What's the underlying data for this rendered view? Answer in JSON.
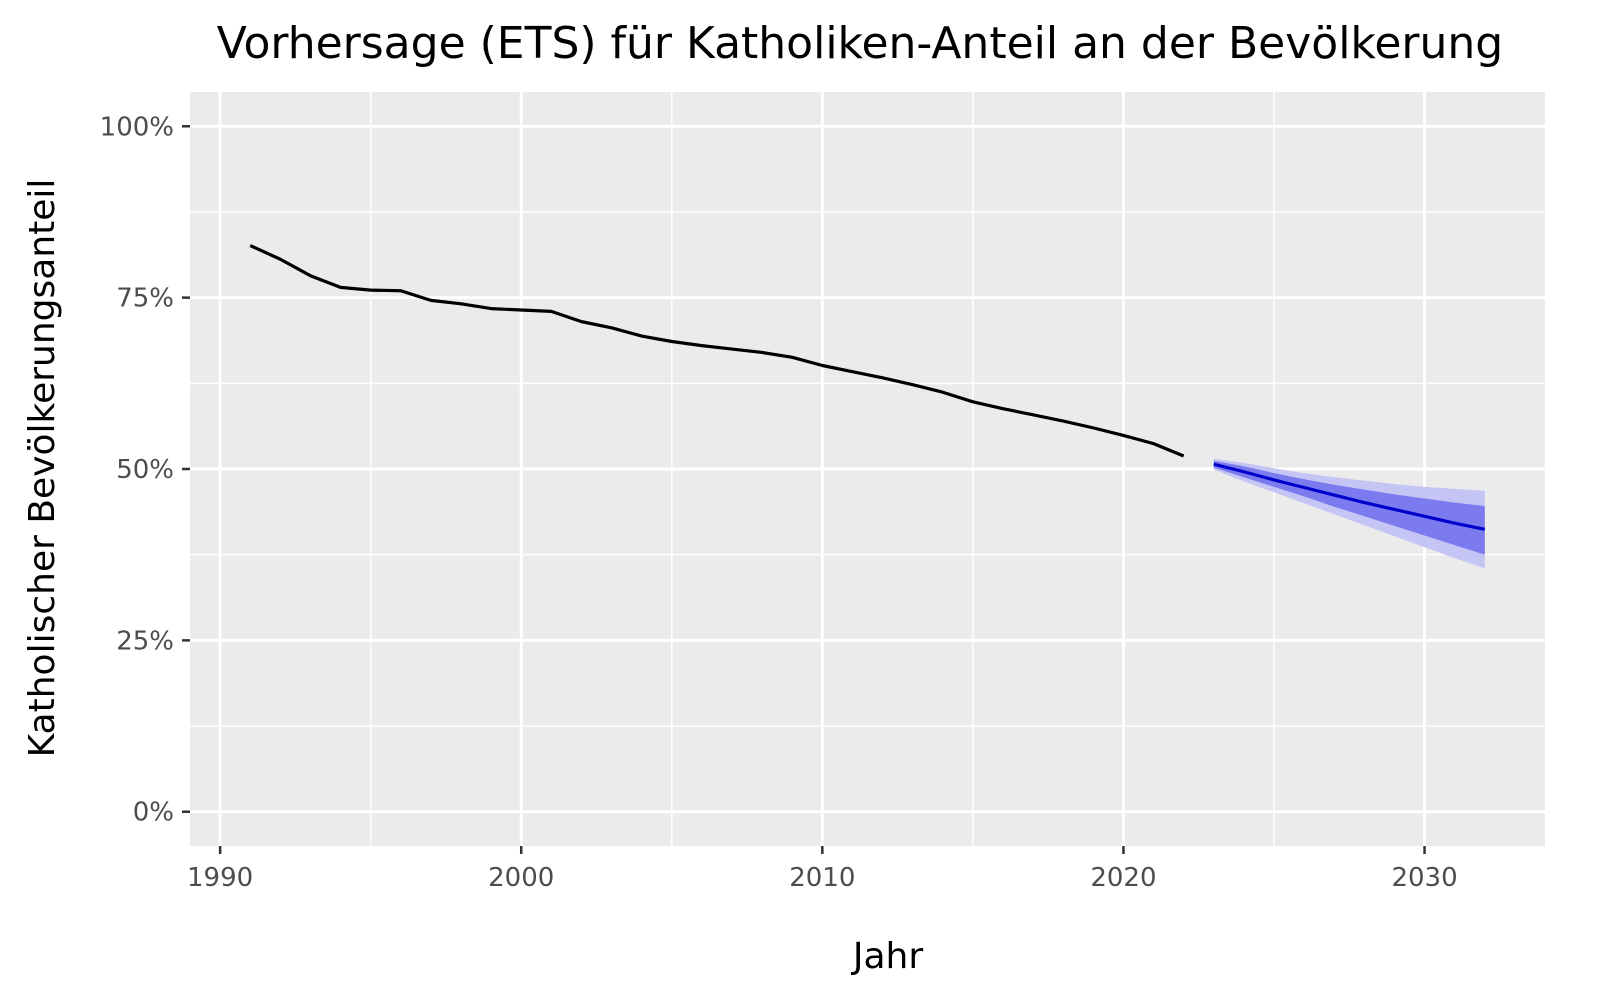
{
  "chart_data": {
    "type": "line",
    "title": "Vorhersage (ETS) für Katholiken-Anteil an der Bevölkerung",
    "xlabel": "Jahr",
    "ylabel": "Katholischer Bevölkerungsanteil",
    "xlim": [
      1989,
      2034
    ],
    "ylim": [
      -0.05,
      1.05
    ],
    "x_ticks": [
      1990,
      2000,
      2010,
      2020,
      2030
    ],
    "x_tick_labels": [
      "1990",
      "2000",
      "2010",
      "2020",
      "2030"
    ],
    "y_ticks": [
      0,
      0.25,
      0.5,
      0.75,
      1.0
    ],
    "y_tick_labels": [
      "0%",
      "25%",
      "50%",
      "75%",
      "100%"
    ],
    "grid": true,
    "legend": "none",
    "colors": {
      "panel": "#ebebeb",
      "history": "#000000",
      "forecast": "#0000cc",
      "band80": "#7b7bef",
      "band95": "#c4c4f5"
    },
    "series": [
      {
        "role": "history",
        "x": [
          1991,
          1992,
          1993,
          1994,
          1995,
          1996,
          1997,
          1998,
          1999,
          2000,
          2001,
          2002,
          2003,
          2004,
          2005,
          2006,
          2007,
          2008,
          2009,
          2010,
          2011,
          2012,
          2013,
          2014,
          2015,
          2016,
          2017,
          2018,
          2019,
          2020,
          2021,
          2022
        ],
        "y": [
          0.826,
          0.806,
          0.782,
          0.765,
          0.761,
          0.76,
          0.746,
          0.741,
          0.734,
          0.732,
          0.73,
          0.715,
          0.706,
          0.694,
          0.686,
          0.68,
          0.675,
          0.67,
          0.663,
          0.651,
          0.642,
          0.633,
          0.623,
          0.612,
          0.598,
          0.588,
          0.579,
          0.57,
          0.56,
          0.549,
          0.537,
          0.519
        ]
      },
      {
        "role": "forecast",
        "x": [
          2023,
          2024,
          2025,
          2026,
          2027,
          2028,
          2029,
          2030,
          2031,
          2032
        ],
        "y": [
          0.507,
          0.496,
          0.484,
          0.473,
          0.462,
          0.451,
          0.441,
          0.431,
          0.421,
          0.412
        ],
        "lo80": [
          0.502,
          0.488,
          0.474,
          0.46,
          0.445,
          0.431,
          0.417,
          0.403,
          0.389,
          0.375
        ],
        "hi80": [
          0.512,
          0.504,
          0.494,
          0.485,
          0.477,
          0.47,
          0.463,
          0.457,
          0.451,
          0.446
        ],
        "lo95": [
          0.499,
          0.482,
          0.466,
          0.45,
          0.434,
          0.418,
          0.402,
          0.386,
          0.37,
          0.355
        ],
        "hi95": [
          0.515,
          0.509,
          0.501,
          0.494,
          0.488,
          0.483,
          0.478,
          0.474,
          0.471,
          0.468
        ]
      }
    ]
  }
}
